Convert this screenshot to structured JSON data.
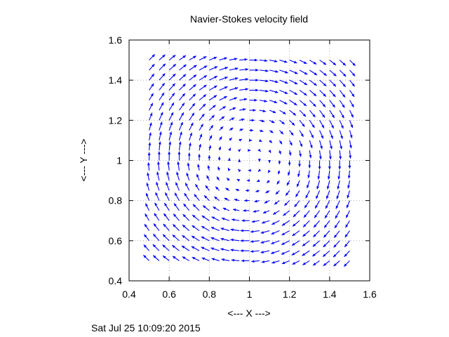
{
  "chart_data": {
    "type": "vector_field",
    "title": "Navier-Stokes velocity field",
    "xlabel": "<--- X --->",
    "ylabel": "<--- Y --->",
    "xlim": [
      0.4,
      1.6
    ],
    "ylim": [
      0.4,
      1.6
    ],
    "xticks": [
      0.4,
      0.6,
      0.8,
      1.0,
      1.2,
      1.4,
      1.6
    ],
    "yticks": [
      0.4,
      0.6,
      0.8,
      1.0,
      1.2,
      1.4,
      1.6
    ],
    "xtick_labels": [
      "0.4",
      "0.6",
      "0.8",
      "1",
      "1.2",
      "1.4",
      "1.6"
    ],
    "ytick_labels": [
      "0.4",
      "0.6",
      "0.8",
      "1",
      "1.2",
      "1.4",
      "1.6"
    ],
    "grid": true,
    "arrow_color": "#0000ff",
    "field": {
      "description": "clockwise rotational flow",
      "center": [
        1.0,
        1.0
      ],
      "domain": [
        0.5,
        1.5
      ],
      "grid_points": 21
    },
    "timestamp": "Sat Jul 25 10:09:20 2015"
  }
}
